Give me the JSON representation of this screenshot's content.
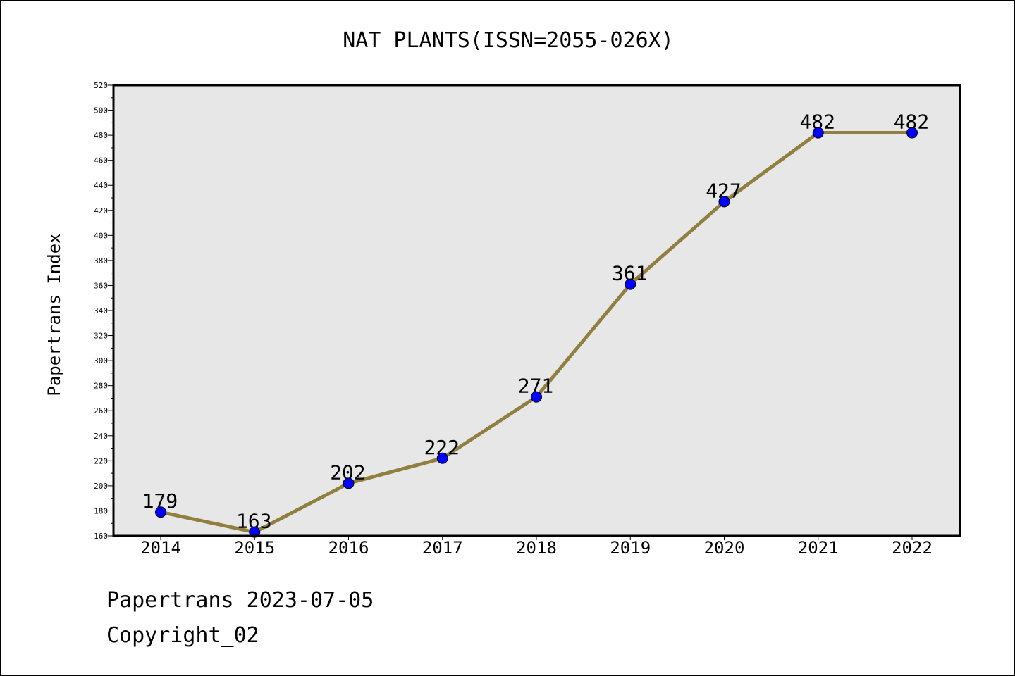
{
  "chart_data": {
    "type": "line",
    "title": "NAT PLANTS(ISSN=2055-026X)",
    "xlabel": "",
    "ylabel": "Papertrans Index",
    "categories": [
      "2014",
      "2015",
      "2016",
      "2017",
      "2018",
      "2019",
      "2020",
      "2021",
      "2022"
    ],
    "values": [
      179,
      163,
      202,
      222,
      271,
      361,
      427,
      482,
      482
    ],
    "data_labels": [
      "179",
      "163",
      "202",
      "222",
      "271",
      "361",
      "427",
      "482",
      "482"
    ],
    "ylim": [
      160,
      520
    ],
    "yticks": [
      "160",
      "180",
      "200",
      "220",
      "240",
      "260",
      "280",
      "300",
      "320",
      "340",
      "360",
      "380",
      "400",
      "420",
      "440",
      "460",
      "480",
      "500",
      "520"
    ],
    "grid": false,
    "legend": "none",
    "colors": {
      "line": "#917f3f",
      "marker": "#0000ff",
      "plot_background": "#e7e7e7"
    }
  },
  "footer": {
    "source": "Papertrans 2023-07-05",
    "copyright": "Copyright_02"
  }
}
